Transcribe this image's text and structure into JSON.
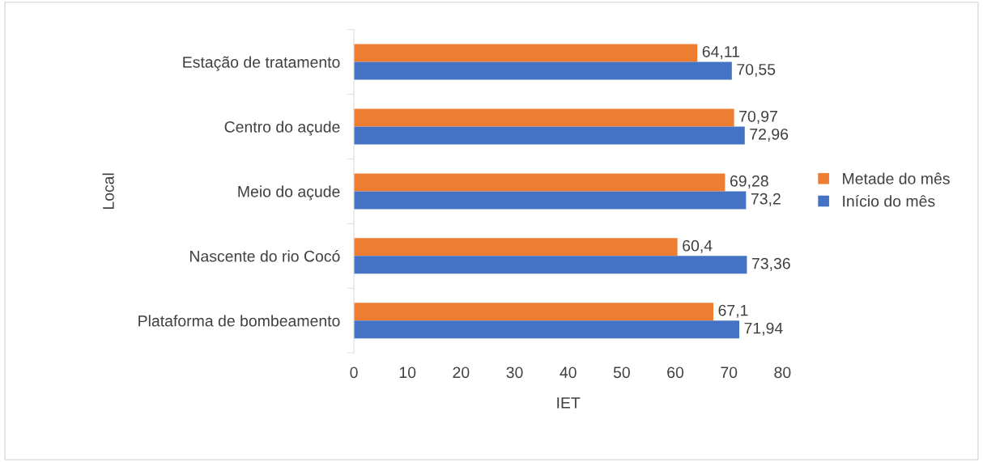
{
  "chart_data": {
    "type": "bar",
    "orientation": "horizontal",
    "xlabel": "IET",
    "ylabel": "Local",
    "categories": [
      "Estação de tratamento",
      "Centro do açude",
      "Meio do açude",
      "Nascente do rio Cocó",
      "Plataforma de bombeamento"
    ],
    "series": [
      {
        "name": "Metade do mês",
        "color": "#ed7d31",
        "values": [
          64.11,
          70.97,
          69.28,
          60.4,
          67.1
        ],
        "value_labels": [
          "64,11",
          "70,97",
          "69,28",
          "60,4",
          "67,1"
        ]
      },
      {
        "name": "Início do mês",
        "color": "#4472c4",
        "values": [
          70.55,
          72.96,
          73.2,
          73.36,
          71.94
        ],
        "value_labels": [
          "70,55",
          "72,96",
          "73,2",
          "73,36",
          "71,94"
        ]
      }
    ],
    "xlim": [
      0,
      80
    ],
    "xticks": [
      0,
      10,
      20,
      30,
      40,
      50,
      60,
      70,
      80
    ],
    "grid": false,
    "legend": "right"
  }
}
